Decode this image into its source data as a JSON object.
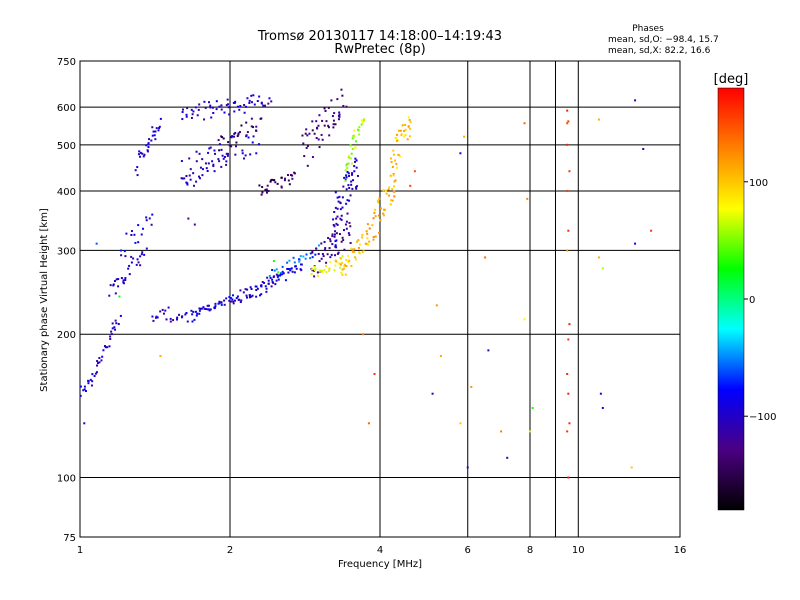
{
  "chart_data": {
    "type": "scatter",
    "title": "Tromsø 20130117 14:18:00–14:19:43",
    "subtitle": "RwPretec (8p)",
    "xlabel": "Frequency [MHz]",
    "ylabel": "Stationary phase Virtual Height [km]",
    "x_scale": "log",
    "y_scale": "log",
    "xlim": [
      1,
      16
    ],
    "ylim": [
      75,
      750
    ],
    "grid": true,
    "xticks": [
      1,
      2,
      4,
      6,
      8,
      9,
      10,
      16
    ],
    "xtick_labels": [
      "1",
      "2",
      "4",
      "6",
      "8",
      "",
      "10",
      "16"
    ],
    "yticks": [
      75,
      100,
      200,
      300,
      400,
      500,
      600,
      750
    ],
    "ytick_labels": [
      "75",
      "100",
      "200",
      "300",
      "400",
      "500",
      "600",
      "750"
    ],
    "legend_text": {
      "heading": "Phases",
      "line_o": "mean, sd,O: −98.4, 15.7",
      "line_x": "mean, sd,X:  82.2, 16.6"
    },
    "colorbar": {
      "unit_label": "[deg]",
      "range": [
        -180,
        180
      ],
      "ticks": [
        100,
        0,
        -100
      ],
      "tick_labels": [
        "100",
        "0",
        "−100"
      ],
      "colors": [
        "#000000",
        "#4b0082",
        "#0000ff",
        "#00ffff",
        "#00ff00",
        "#ffff00",
        "#ff8000",
        "#ff0000"
      ]
    },
    "series": [
      {
        "traces": [
          {
            "f0": 1.0,
            "f1": 1.05,
            "h0": 150,
            "h1": 160,
            "n": 10,
            "j": 4,
            "ph": -95
          },
          {
            "f0": 1.05,
            "f1": 1.2,
            "h0": 160,
            "h1": 215,
            "n": 30,
            "j": 6,
            "ph": -100
          },
          {
            "f0": 1.15,
            "f1": 1.35,
            "h0": 245,
            "h1": 300,
            "n": 30,
            "j": 12,
            "ph": -105
          },
          {
            "f0": 1.2,
            "f1": 1.4,
            "h0": 300,
            "h1": 350,
            "n": 18,
            "j": 15,
            "ph": -90
          },
          {
            "f0": 1.3,
            "f1": 1.45,
            "h0": 450,
            "h1": 560,
            "n": 30,
            "j": 25,
            "ph": -100
          },
          {
            "f0": 1.4,
            "f1": 1.5,
            "h0": 215,
            "h1": 225,
            "n": 10,
            "j": 4,
            "ph": -95
          },
          {
            "f0": 1.5,
            "f1": 2.2,
            "h0": 215,
            "h1": 240,
            "n": 45,
            "j": 3,
            "ph": -100
          },
          {
            "f0": 2.2,
            "f1": 2.8,
            "h0": 240,
            "h1": 280,
            "n": 40,
            "j": 6,
            "ph": -95
          },
          {
            "f0": 1.65,
            "f1": 2.5,
            "h0": 215,
            "h1": 265,
            "n": 40,
            "j": 4,
            "ph": -90
          },
          {
            "f0": 2.4,
            "f1": 3.0,
            "h0": 265,
            "h1": 300,
            "n": 30,
            "j": 8,
            "ph": -60
          },
          {
            "f0": 1.6,
            "f1": 2.4,
            "h0": 580,
            "h1": 620,
            "n": 60,
            "j": 25,
            "ph": -100
          },
          {
            "f0": 1.6,
            "f1": 2.3,
            "h0": 430,
            "h1": 520,
            "n": 50,
            "j": 40,
            "ph": -100
          },
          {
            "f0": 1.6,
            "f1": 2.0,
            "h0": 420,
            "h1": 470,
            "n": 20,
            "j": 15,
            "ph": -105
          },
          {
            "f0": 1.9,
            "f1": 2.3,
            "h0": 500,
            "h1": 560,
            "n": 25,
            "j": 20,
            "ph": -140
          },
          {
            "f0": 2.3,
            "f1": 2.7,
            "h0": 400,
            "h1": 430,
            "n": 30,
            "j": 12,
            "ph": -140
          },
          {
            "f0": 2.8,
            "f1": 3.4,
            "h0": 480,
            "h1": 620,
            "n": 50,
            "j": 50,
            "ph": -130
          },
          {
            "f0": 2.9,
            "f1": 3.5,
            "h0": 280,
            "h1": 330,
            "n": 50,
            "j": 20,
            "ph": -120
          },
          {
            "f0": 3.2,
            "f1": 3.6,
            "h0": 330,
            "h1": 450,
            "n": 60,
            "j": 40,
            "ph": -100
          },
          {
            "f0": 3.4,
            "f1": 3.7,
            "h0": 440,
            "h1": 560,
            "n": 30,
            "j": 30,
            "ph": 60
          },
          {
            "f0": 2.9,
            "f1": 3.4,
            "h0": 270,
            "h1": 285,
            "n": 25,
            "j": 8,
            "ph": 80
          },
          {
            "f0": 3.3,
            "f1": 3.8,
            "h0": 270,
            "h1": 320,
            "n": 40,
            "j": 15,
            "ph": 100
          },
          {
            "f0": 3.8,
            "f1": 4.3,
            "h0": 320,
            "h1": 420,
            "n": 40,
            "j": 25,
            "ph": 110
          },
          {
            "f0": 4.2,
            "f1": 4.6,
            "h0": 430,
            "h1": 570,
            "n": 40,
            "j": 40,
            "ph": 100
          }
        ],
        "points": [
          [
            1.65,
            350,
            -130
          ],
          [
            1.7,
            340,
            -120
          ],
          [
            2.5,
            270,
            40
          ],
          [
            2.45,
            285,
            30
          ],
          [
            1.2,
            240,
            20
          ],
          [
            1.08,
            310,
            -60
          ],
          [
            1.02,
            130,
            -100
          ],
          [
            1.45,
            180,
            110
          ],
          [
            3.7,
            200,
            130
          ],
          [
            3.9,
            165,
            160
          ],
          [
            3.8,
            130,
            140
          ],
          [
            5.2,
            230,
            120
          ],
          [
            5.3,
            180,
            110
          ],
          [
            5.1,
            150,
            -110
          ],
          [
            5.8,
            480,
            -90
          ],
          [
            5.9,
            520,
            110
          ],
          [
            6.0,
            105,
            -110
          ],
          [
            5.8,
            130,
            100
          ],
          [
            6.1,
            155,
            120
          ],
          [
            6.5,
            290,
            140
          ],
          [
            6.6,
            185,
            -110
          ],
          [
            7.0,
            125,
            130
          ],
          [
            7.2,
            110,
            -120
          ],
          [
            7.8,
            555,
            140
          ],
          [
            7.9,
            385,
            130
          ],
          [
            7.8,
            215,
            80
          ],
          [
            8.0,
            125,
            70
          ],
          [
            8.1,
            140,
            30
          ],
          [
            9.5,
            590,
            170
          ],
          [
            9.55,
            560,
            160
          ],
          [
            9.5,
            500,
            170
          ],
          [
            9.6,
            440,
            160
          ],
          [
            9.5,
            400,
            155
          ],
          [
            9.55,
            330,
            165
          ],
          [
            9.5,
            300,
            120
          ],
          [
            9.6,
            210,
            170
          ],
          [
            9.55,
            195,
            160
          ],
          [
            9.5,
            165,
            165
          ],
          [
            9.55,
            150,
            170
          ],
          [
            9.6,
            130,
            165
          ],
          [
            9.5,
            125,
            160
          ],
          [
            9.55,
            100,
            170
          ],
          [
            9.5,
            555,
            150
          ],
          [
            11.0,
            565,
            110
          ],
          [
            11.0,
            290,
            110
          ],
          [
            11.2,
            275,
            60
          ],
          [
            11.1,
            150,
            -100
          ],
          [
            11.2,
            140,
            -100
          ],
          [
            13.0,
            620,
            -110
          ],
          [
            13.0,
            310,
            -80
          ],
          [
            13.5,
            490,
            -100
          ],
          [
            14.0,
            330,
            160
          ],
          [
            12.8,
            105,
            100
          ],
          [
            4.7,
            440,
            150
          ],
          [
            4.6,
            410,
            155
          ]
        ]
      }
    ]
  }
}
